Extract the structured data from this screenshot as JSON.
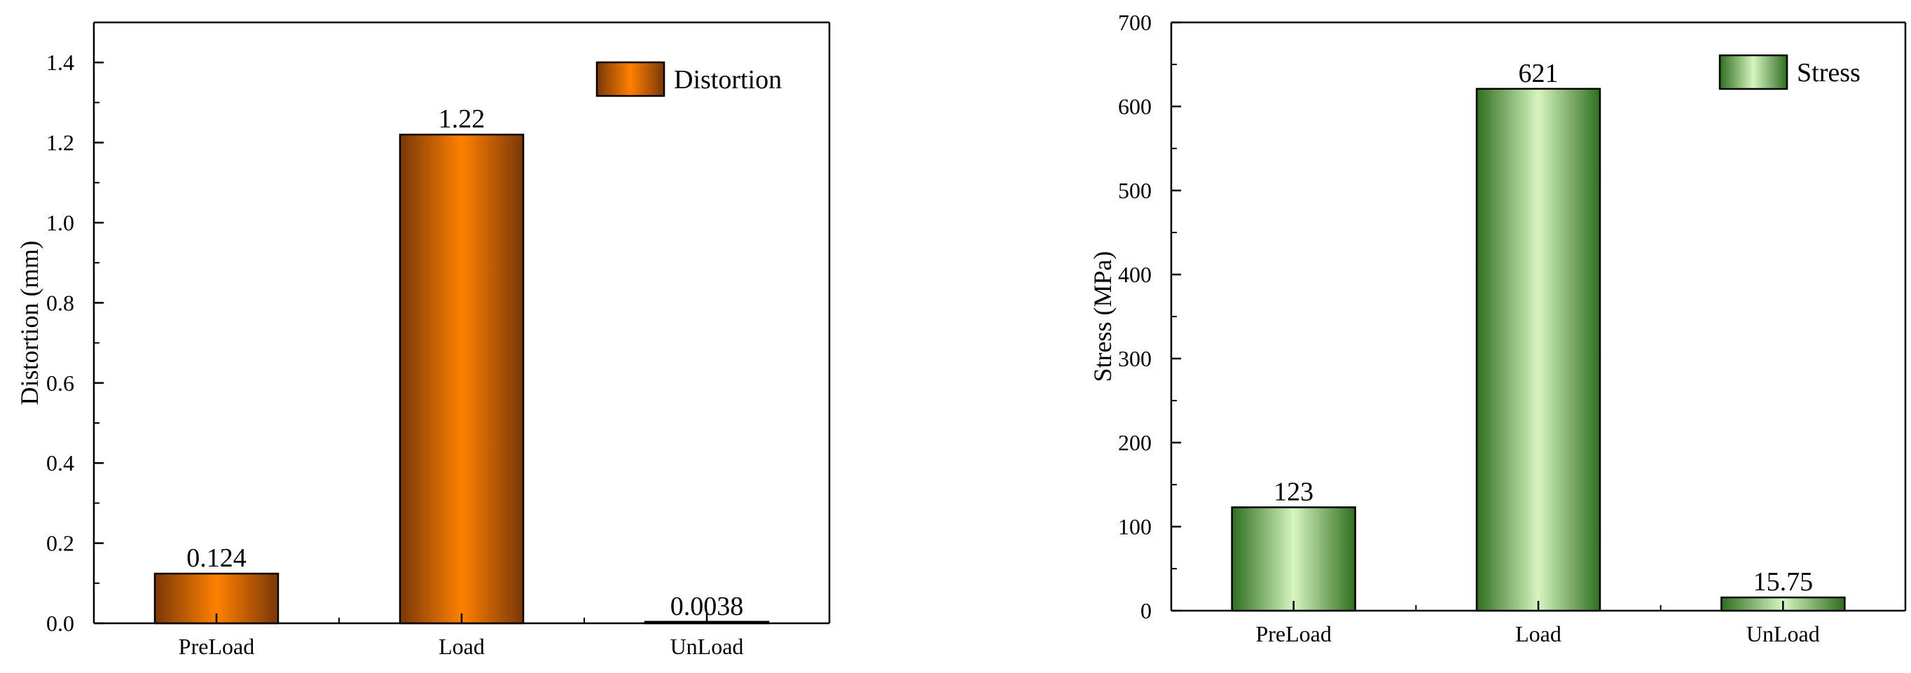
{
  "chart_data": [
    {
      "type": "bar",
      "categories": [
        "PreLoad",
        "Load",
        "UnLoad"
      ],
      "series": [
        {
          "name": "Distortion",
          "values": [
            0.124,
            1.22,
            0.0038
          ]
        }
      ],
      "value_labels": [
        "0.124",
        "1.22",
        "0.0038"
      ],
      "title": "",
      "xlabel": "",
      "ylabel": "Distortion (mm)",
      "ylim": [
        0,
        1.5
      ],
      "yticks": [
        0.0,
        0.2,
        0.4,
        0.6,
        0.8,
        1.0,
        1.2,
        1.4
      ],
      "ytick_labels": [
        "0.0",
        "0.2",
        "0.4",
        "0.6",
        "0.8",
        "1.0",
        "1.2",
        "1.4"
      ],
      "grid": false,
      "legend": "top-right",
      "colors": {
        "bar_center": "#ff8000",
        "bar_edge": "#7a3808",
        "outline": "#000000"
      }
    },
    {
      "type": "bar",
      "categories": [
        "PreLoad",
        "Load",
        "UnLoad"
      ],
      "series": [
        {
          "name": "Stress",
          "values": [
            123,
            621,
            15.75
          ]
        }
      ],
      "value_labels": [
        "123",
        "621",
        "15.75"
      ],
      "title": "",
      "xlabel": "",
      "ylabel": "Stress (MPa)",
      "ylim": [
        0,
        700
      ],
      "yticks": [
        0,
        100,
        200,
        300,
        400,
        500,
        600,
        700
      ],
      "ytick_labels": [
        "0",
        "100",
        "200",
        "300",
        "400",
        "500",
        "600",
        "700"
      ],
      "grid": false,
      "legend": "top-right",
      "colors": {
        "bar_center": "#d6f5c0",
        "bar_edge": "#2f6e1e",
        "outline": "#000000"
      }
    }
  ]
}
